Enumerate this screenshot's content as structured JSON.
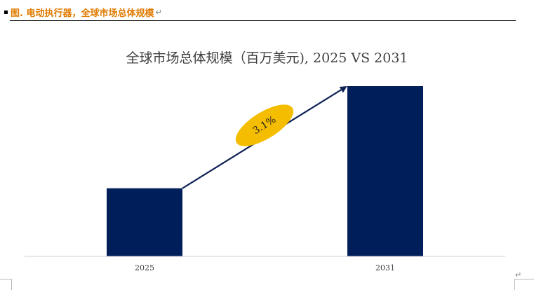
{
  "doc": {
    "caption": "图.   电动执行器，全球市场总体规模",
    "paragraph_mark": "↵"
  },
  "colors": {
    "caption": "#e07b00",
    "bar": "#001e5a",
    "badge": "#f5bd00",
    "arrow": "#0f2256",
    "title": "#404040"
  },
  "chart_data": {
    "type": "bar",
    "title": "全球市场总体规模（百万美元), 2025 VS 2031",
    "categories": [
      "2025",
      "2031"
    ],
    "values": [
      0.4,
      1.0
    ],
    "value_note": "relative bar heights; axis values not printed",
    "annotation": {
      "label": "3.1%",
      "type": "growth-arrow",
      "from": "2025",
      "to": "2031"
    },
    "grid": false,
    "legend": "none"
  }
}
